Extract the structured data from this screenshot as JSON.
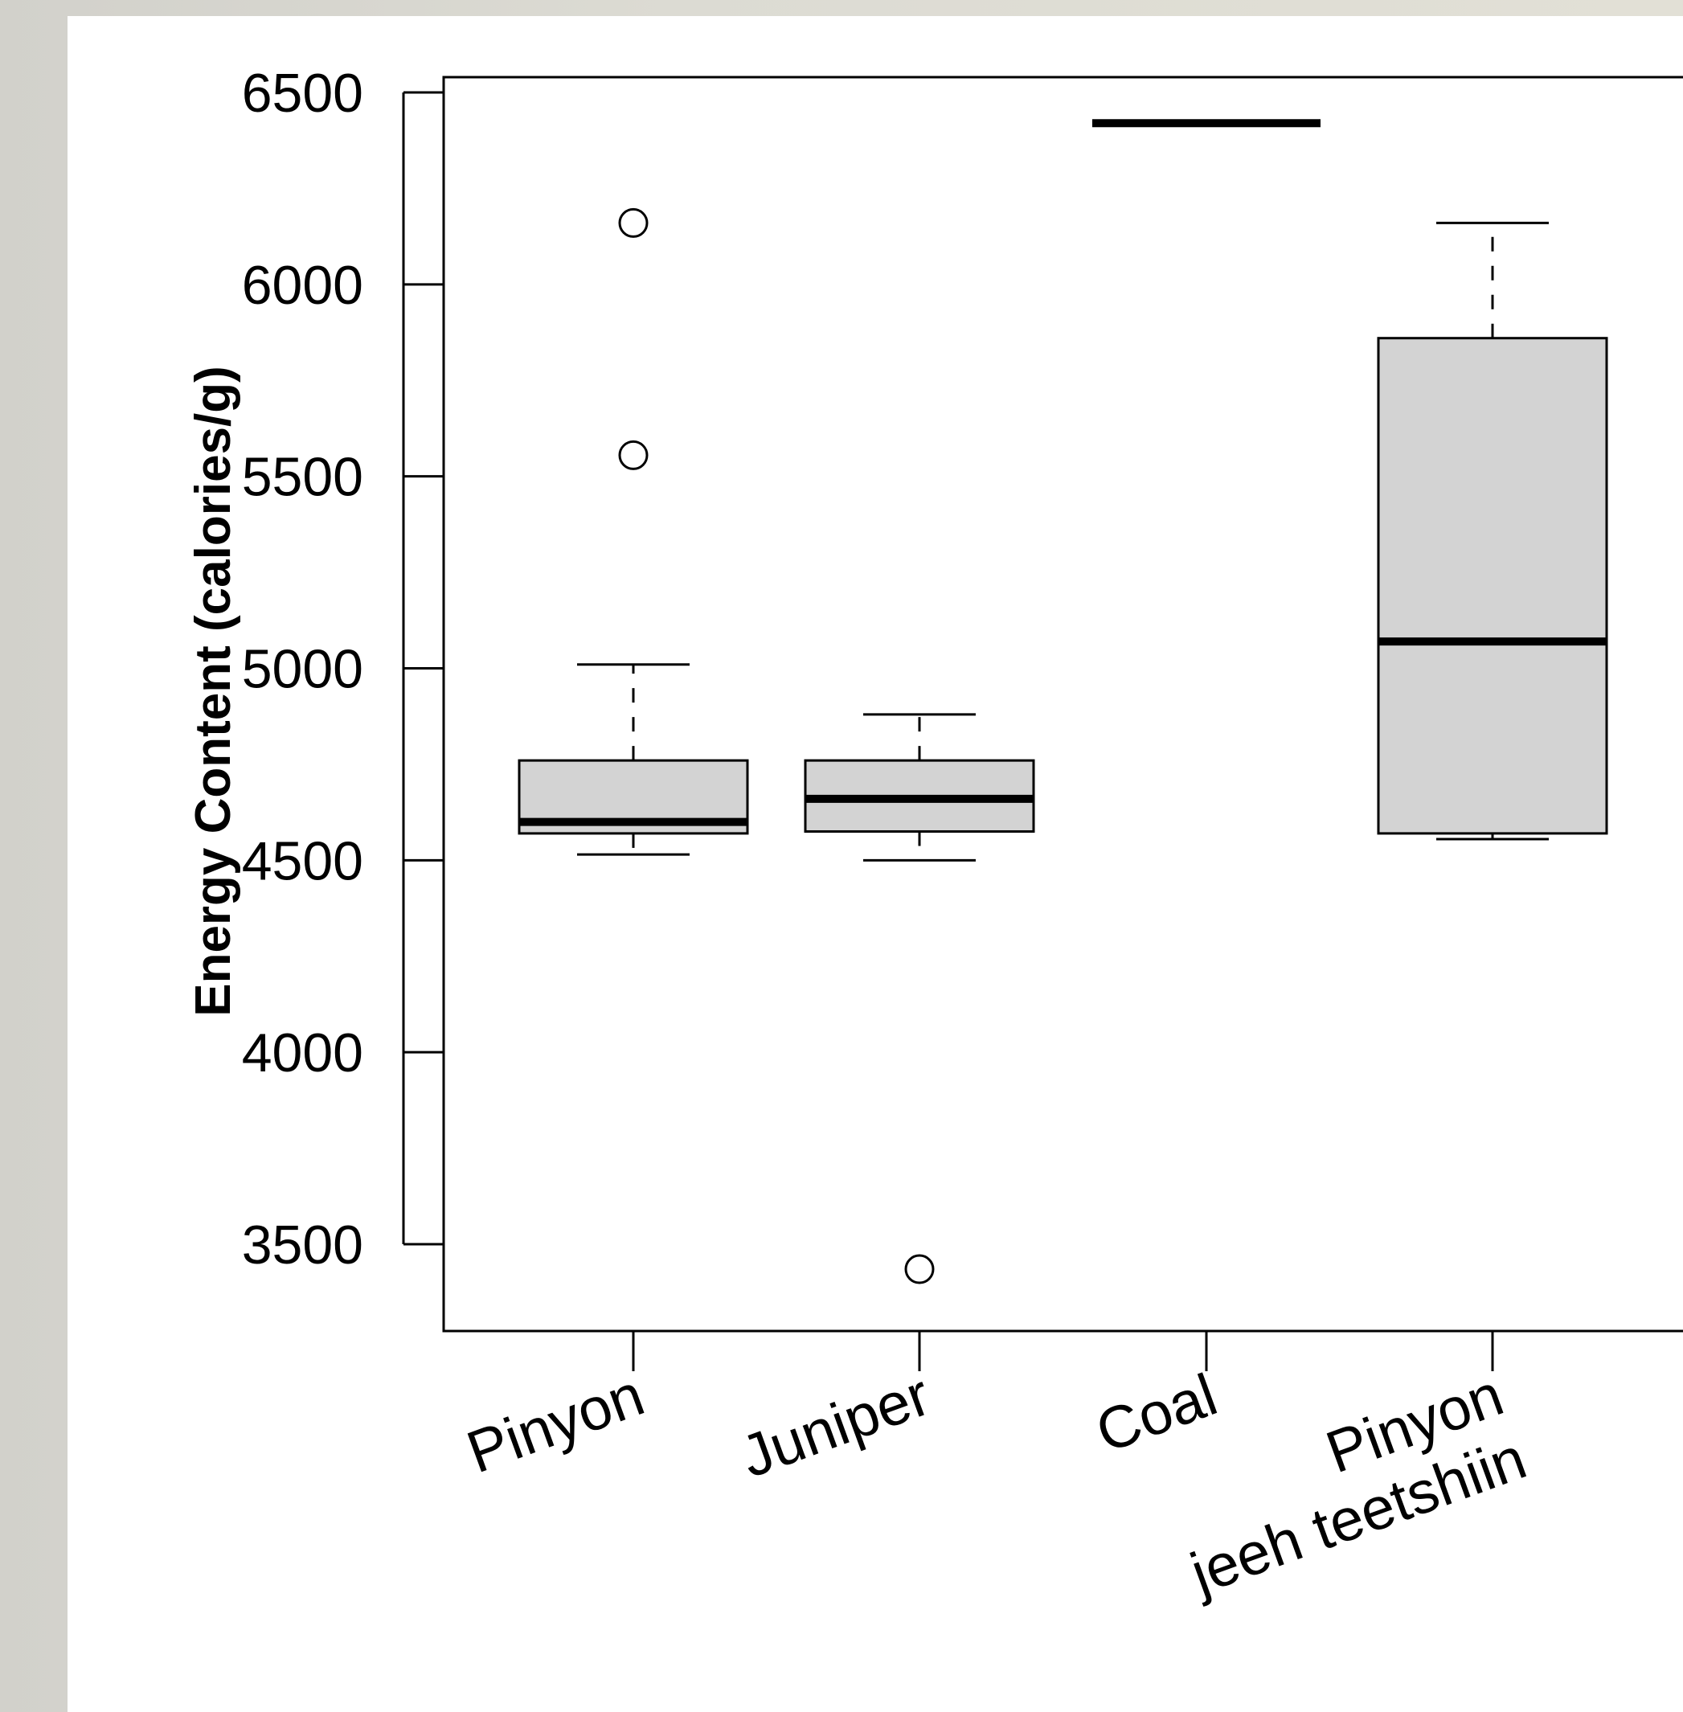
{
  "chart_data": {
    "type": "box",
    "title": "",
    "xlabel": "",
    "ylabel": "Energy Content (calories/g)",
    "ylim": [
      3320,
      6540
    ],
    "yticks": [
      3500,
      4000,
      4500,
      5000,
      5500,
      6000,
      6500
    ],
    "grid": false,
    "legend": "none",
    "box_fill": "#d3d3d3",
    "line_color": "#000000",
    "categories": [
      [
        "Pinyon"
      ],
      [
        "Juniper"
      ],
      [
        "Coal"
      ],
      [
        "Pinyon",
        "jeeh teetshiin"
      ]
    ],
    "series": [
      {
        "category": "Pinyon",
        "whisker_low": 4515,
        "q1": 4570,
        "median": 4600,
        "q3": 4760,
        "whisker_high": 5010,
        "outliers": [
          5555,
          6160
        ]
      },
      {
        "category": "Juniper",
        "whisker_low": 4500,
        "q1": 4575,
        "median": 4660,
        "q3": 4760,
        "whisker_high": 4880,
        "outliers": [
          3435
        ]
      },
      {
        "category": "Coal",
        "whisker_low": 6420,
        "q1": 6420,
        "median": 6420,
        "q3": 6420,
        "whisker_high": 6420,
        "outliers": []
      },
      {
        "category": "Pinyon jeeh teetshiin",
        "whisker_low": 4555,
        "q1": 4570,
        "median": 5070,
        "q3": 5860,
        "whisker_high": 6160,
        "outliers": []
      }
    ]
  }
}
